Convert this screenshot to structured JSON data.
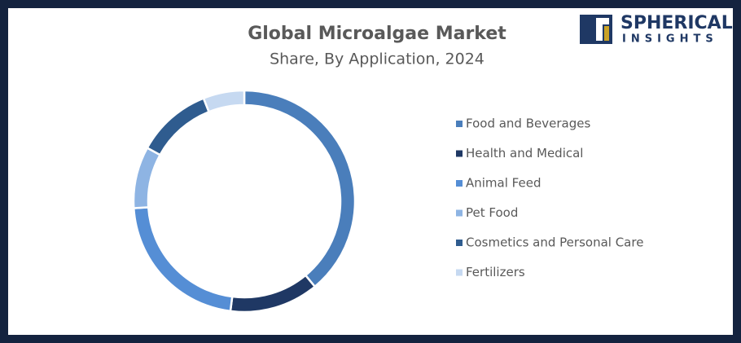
{
  "chart_data": {
    "type": "donut",
    "title": "Global Microalgae Market",
    "subtitle": "Share, By Application, 2024",
    "categories": [
      "Food and Beverages",
      "Health and Medical",
      "Animal Feed",
      "Pet Food",
      "Cosmetics and Personal Care",
      "Fertilizers"
    ],
    "values": [
      39,
      13,
      22,
      9,
      11,
      6
    ],
    "colors": [
      "#4a7ebb",
      "#1f3864",
      "#558ed5",
      "#8eb4e3",
      "#2f5c8f",
      "#c6d9f1"
    ],
    "legend": "right"
  },
  "brand": {
    "line1": "SPHERICAL",
    "line2": "INSIGHTS"
  }
}
